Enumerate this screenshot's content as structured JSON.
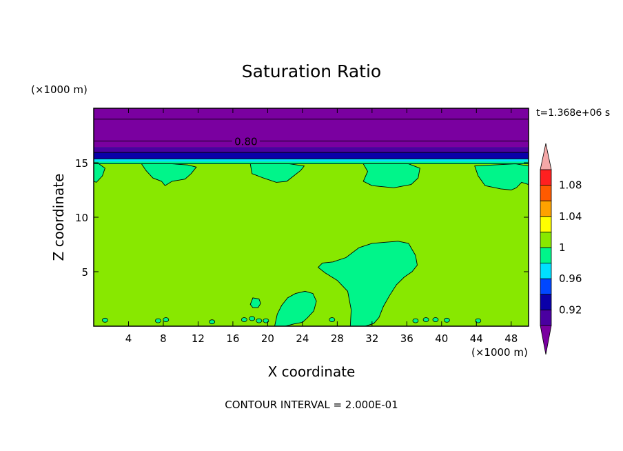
{
  "chart_data": {
    "type": "heatmap",
    "title": "Saturation Ratio",
    "xlabel": "X coordinate",
    "ylabel": "Z coordinate",
    "x_unit": "(×1000 m)",
    "y_unit": "(×1000 m)",
    "time_label": "t=1.368e+06 s",
    "footer": "CONTOUR INTERVAL = 2.000E-01",
    "xlim": [
      0,
      50
    ],
    "ylim": [
      0,
      20
    ],
    "x_ticks": [
      4,
      8,
      12,
      16,
      20,
      24,
      28,
      32,
      36,
      40,
      44,
      48
    ],
    "y_ticks": [
      5,
      10,
      15
    ],
    "grid": false,
    "contour_line_labels": [
      {
        "value": "0.80",
        "x": 17.5,
        "z": 17
      }
    ],
    "colorbar": {
      "levels": [
        0.9,
        0.92,
        0.94,
        0.96,
        0.98,
        1.0,
        1.02,
        1.04,
        1.06,
        1.08,
        1.1
      ],
      "tick_labels": [
        "0.92",
        "0.96",
        "1",
        "1.04",
        "1.08"
      ],
      "tick_values": [
        0.92,
        0.96,
        1.0,
        1.04,
        1.08
      ],
      "colors": [
        "#4a00a0",
        "#0a00a8",
        "#0047ff",
        "#00e0ff",
        "#00f58a",
        "#88e800",
        "#ffff00",
        "#ffa200",
        "#ff5a00",
        "#ff2020"
      ],
      "under_color": "#7a00a0",
      "over_color": "#f5a8a8"
    },
    "regions": {
      "background": "#88e800",
      "moist_patches": "#00f58a",
      "upper_layer": "#7a00a0",
      "band_092": "#4a00a0",
      "band_094": "#0a00a8",
      "band_098": "#00e0ff"
    }
  }
}
